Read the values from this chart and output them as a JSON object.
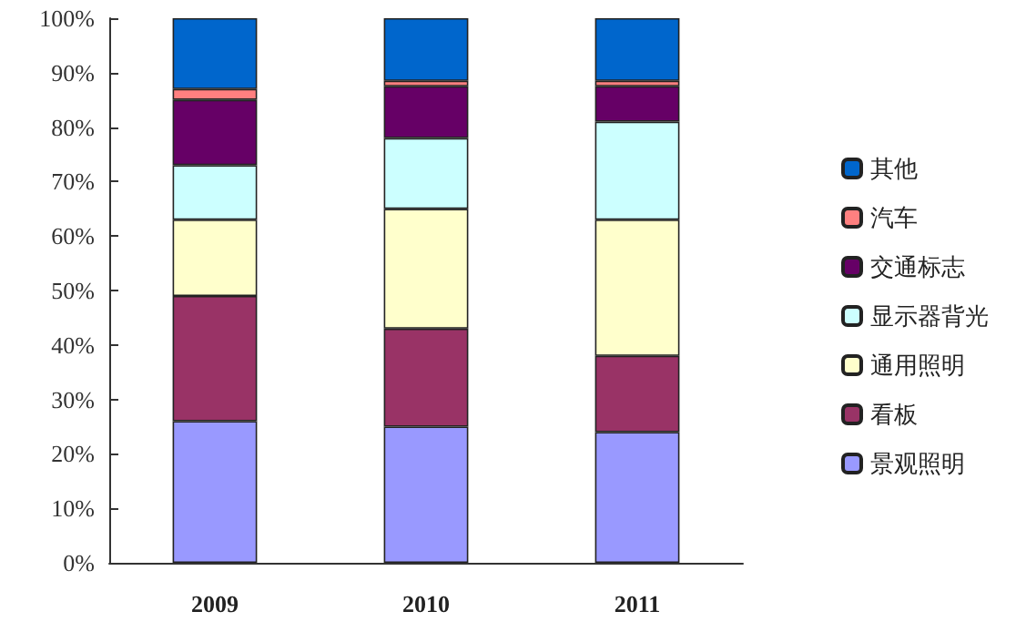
{
  "chart_data": {
    "type": "bar",
    "stacked": true,
    "categories": [
      "2009",
      "2010",
      "2011"
    ],
    "series": [
      {
        "name": "景观照明",
        "color": "#9999ff",
        "values": [
          26,
          25,
          24
        ]
      },
      {
        "name": "看板",
        "color": "#993366",
        "values": [
          23,
          18,
          14
        ]
      },
      {
        "name": "通用照明",
        "color": "#ffffcc",
        "values": [
          14,
          22,
          25
        ]
      },
      {
        "name": "显示器背光",
        "color": "#ccffff",
        "values": [
          10,
          13,
          18
        ]
      },
      {
        "name": "交通标志",
        "color": "#660066",
        "values": [
          12,
          9.5,
          6.5
        ]
      },
      {
        "name": "汽车",
        "color": "#ff8080",
        "values": [
          2,
          1,
          1
        ]
      },
      {
        "name": "其他",
        "color": "#0066cc",
        "values": [
          13,
          11.5,
          11.5
        ]
      }
    ],
    "ylim": [
      0,
      100
    ],
    "yticks": [
      {
        "value": 0,
        "label": "0%"
      },
      {
        "value": 10,
        "label": "10%"
      },
      {
        "value": 20,
        "label": "20%"
      },
      {
        "value": 30,
        "label": "30%"
      },
      {
        "value": 40,
        "label": "40%"
      },
      {
        "value": 50,
        "label": "50%"
      },
      {
        "value": 60,
        "label": "60%"
      },
      {
        "value": 70,
        "label": "70%"
      },
      {
        "value": 80,
        "label": "80%"
      },
      {
        "value": 90,
        "label": "90%"
      },
      {
        "value": 100,
        "label": "100%"
      }
    ],
    "grid": false,
    "legend": "right"
  }
}
